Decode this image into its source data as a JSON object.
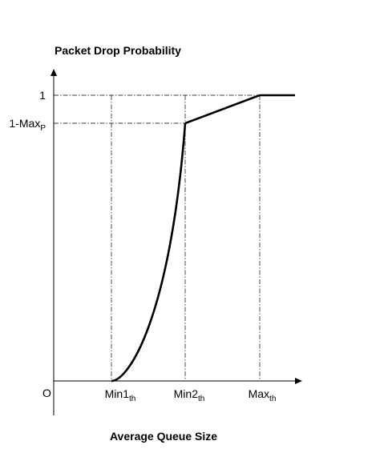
{
  "chart_data": {
    "type": "line",
    "title": "Packet Drop Probability",
    "xlabel": "Average Queue Size",
    "origin_label": "O",
    "x_ticks": [
      {
        "base": "Min1",
        "sub": "th"
      },
      {
        "base": "Min2",
        "sub": "th"
      },
      {
        "base": "Max",
        "sub": "th"
      }
    ],
    "y_ticks": [
      {
        "base": "1",
        "sub": ""
      },
      {
        "base": "1-Max",
        "sub": "P"
      }
    ],
    "y_values": {
      "one": 1,
      "one_minus_maxp": 0.9
    },
    "segments": [
      {
        "from": "Min1th",
        "to": "Min2th",
        "shape": "convex-curve",
        "y_from": 0,
        "y_to": "1-MaxP"
      },
      {
        "from": "Min2th",
        "to": "Maxth",
        "shape": "linear",
        "y_from": "1-MaxP",
        "y_to": 1
      },
      {
        "from": "Maxth",
        "to": "beyond",
        "shape": "constant",
        "y_from": 1,
        "y_to": 1
      }
    ],
    "grid": false,
    "legend": "none"
  }
}
